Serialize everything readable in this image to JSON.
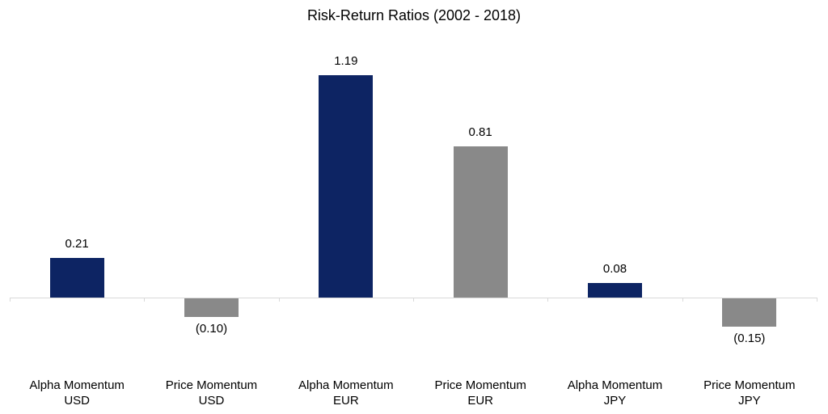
{
  "colors": {
    "navy": "#0d2463",
    "gray": "#898989",
    "axis": "#d9d9d9",
    "text": "#000000",
    "background": "#ffffff"
  },
  "chart_data": {
    "type": "bar",
    "title": "Risk-Return Ratios (2002 - 2018)",
    "categories": [
      "Alpha Momentum\nUSD",
      "Price Momentum\nUSD",
      "Alpha Momentum\nEUR",
      "Price Momentum\nEUR",
      "Alpha Momentum\nJPY",
      "Price Momentum\nJPY"
    ],
    "values": [
      0.21,
      -0.1,
      1.19,
      0.81,
      0.08,
      -0.15
    ],
    "value_labels": [
      "0.21",
      "(0.10)",
      "1.19",
      "0.81",
      "0.08",
      "(0.15)"
    ],
    "bar_colors": [
      "#0d2463",
      "#898989",
      "#0d2463",
      "#898989",
      "#0d2463",
      "#898989"
    ],
    "xlabel": "",
    "ylabel": "",
    "ylim": [
      -0.25,
      1.35
    ],
    "grid": false,
    "legend": false,
    "y_axis_visible": false,
    "value_label_style": "negatives shown in parentheses, positives above bars, negatives below bars"
  }
}
